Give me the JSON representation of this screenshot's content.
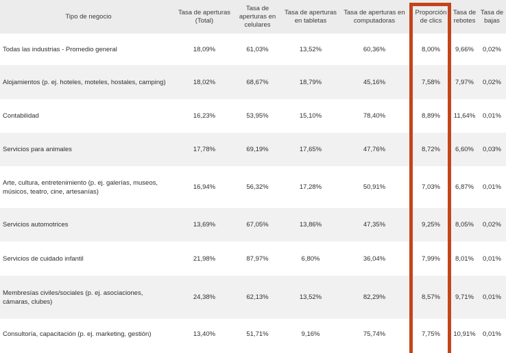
{
  "table": {
    "headers": [
      "Tipo de negocio",
      "Tasa de aperturas (Total)",
      "Tasa de aperturas en celulares",
      "Tasa de aperturas en tabletas",
      "Tasa de aperturas en computadoras",
      "Proporción de clics",
      "Tasa de rebotes",
      "Tasa de bajas"
    ],
    "rows": [
      [
        "Todas las industrias - Promedio general",
        "18,09%",
        "61,03%",
        "13,52%",
        "60,36%",
        "8,00%",
        "9,66%",
        "0,02%"
      ],
      [
        "Alojamientos (p. ej. hoteles, moteles, hostales, camping)",
        "18,02%",
        "68,67%",
        "18,79%",
        "45,16%",
        "7,58%",
        "7,97%",
        "0,02%"
      ],
      [
        "Contabilidad",
        "16,23%",
        "53,95%",
        "15,10%",
        "78,40%",
        "8,89%",
        "11,64%",
        "0,01%"
      ],
      [
        "Servicios para animales",
        "17,78%",
        "69,19%",
        "17,65%",
        "47,76%",
        "8,72%",
        "6,60%",
        "0,03%"
      ],
      [
        "Arte, cultura, entretenimiento (p. ej. galerías, museos, músicos, teatro, cine, artesanías)",
        "16,94%",
        "56,32%",
        "17,28%",
        "50,91%",
        "7,03%",
        "6,87%",
        "0,01%"
      ],
      [
        "Servicios automotrices",
        "13,69%",
        "67,05%",
        "13,86%",
        "47,35%",
        "9,25%",
        "8,05%",
        "0,02%"
      ],
      [
        "Servicios de cuidado infantil",
        "21,98%",
        "87,97%",
        "6,80%",
        "36,04%",
        "7,99%",
        "8,01%",
        "0,01%"
      ],
      [
        "Membresías civiles/sociales (p. ej. asociaciones, cámaras, clubes)",
        "24,38%",
        "62,13%",
        "13,52%",
        "82,29%",
        "8,57%",
        "9,71%",
        "0,01%"
      ],
      [
        "Consultoría, capacitación (p. ej. marketing, gestión)",
        "13,40%",
        "51,71%",
        "9,16%",
        "75,74%",
        "7,75%",
        "10,91%",
        "0,01%"
      ]
    ]
  },
  "colors": {
    "highlight": "#c4441b",
    "header_bg": "#ececec",
    "stripe_bg": "#f1f1f1"
  }
}
